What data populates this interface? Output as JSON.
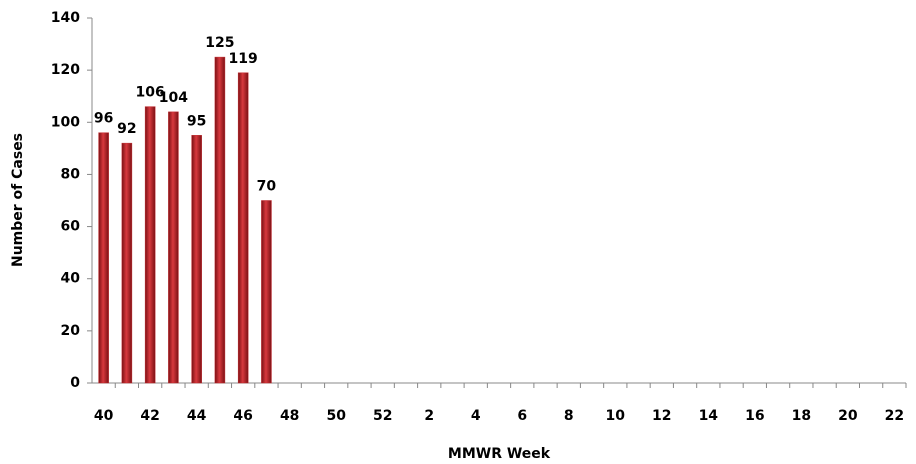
{
  "chart_data": {
    "type": "bar",
    "x_label": "MMWR Week",
    "y_label": "Number of Cases",
    "categories": [
      "40",
      null,
      "42",
      null,
      "44",
      null,
      "46",
      null,
      "48",
      null,
      "50",
      null,
      "52",
      null,
      "2",
      null,
      "4",
      null,
      "6",
      null,
      "8",
      null,
      "10",
      null,
      "12",
      null,
      "14",
      null,
      "16",
      null,
      "18",
      null,
      "20",
      null,
      "22"
    ],
    "values": [
      96,
      92,
      106,
      104,
      95,
      125,
      119,
      70,
      null,
      null,
      null,
      null,
      null,
      null,
      null,
      null,
      null,
      null,
      null,
      null,
      null,
      null,
      null,
      null,
      null,
      null,
      null,
      null,
      null,
      null,
      null,
      null,
      null,
      null,
      null
    ],
    "color": "#c0282d",
    "ylim": [
      0,
      140
    ],
    "yticks": [
      0,
      20,
      40,
      60,
      80,
      100,
      120,
      140
    ],
    "grid": false
  }
}
